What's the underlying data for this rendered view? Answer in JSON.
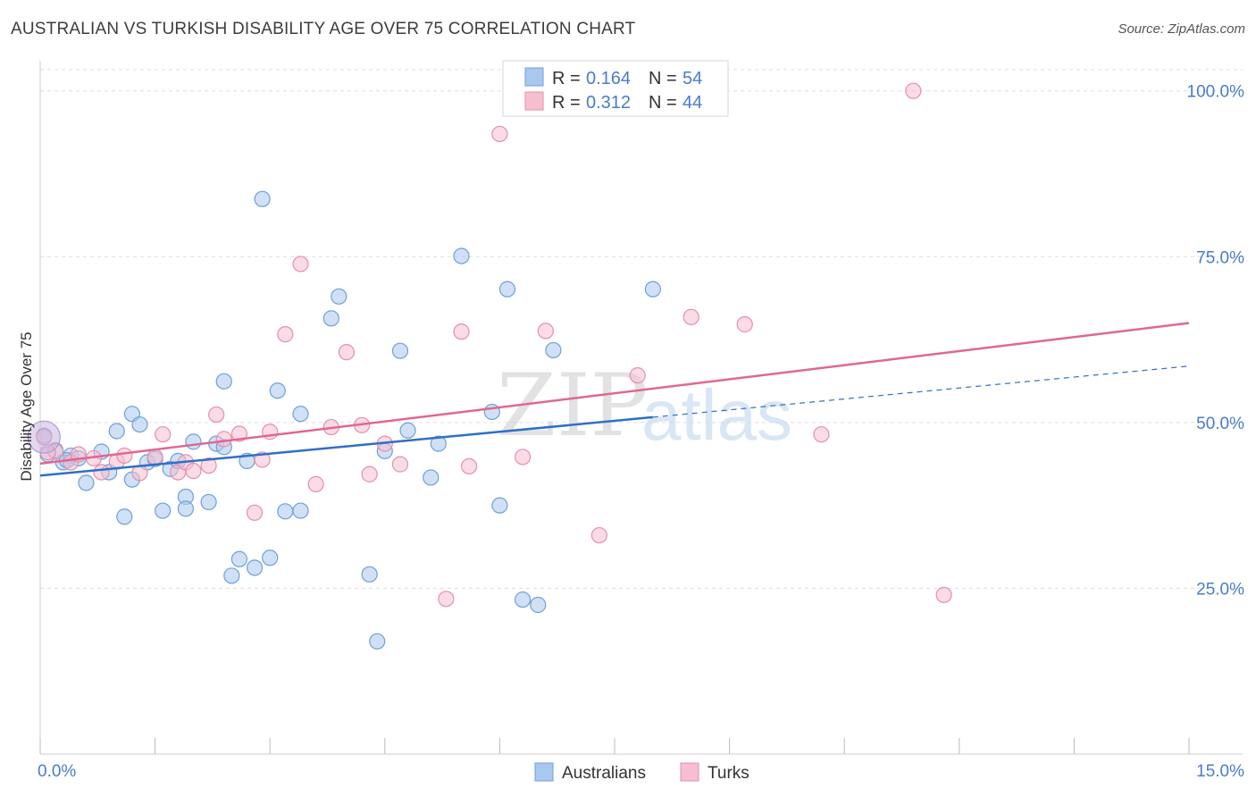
{
  "header": {
    "title": "AUSTRALIAN VS TURKISH DISABILITY AGE OVER 75 CORRELATION CHART",
    "source": "Source: ZipAtlas.com"
  },
  "legend": {
    "rows": [
      {
        "r_label": "R = ",
        "r_value": "0.164",
        "n_label": "N = ",
        "n_value": "54"
      },
      {
        "r_label": "R = ",
        "r_value": "0.312",
        "n_label": "N = ",
        "n_value": "44"
      }
    ],
    "bottom": [
      "Australians",
      "Turks"
    ]
  },
  "watermark": {
    "zip": "ZIP",
    "atlas": "atlas"
  },
  "colors": {
    "australians_fill": "#a9c8ef",
    "australians_stroke": "#6f9fd8",
    "australians_line": "#2f6fc9",
    "turks_fill": "#f6bfd0",
    "turks_stroke": "#e58fab",
    "turks_line": "#e06792",
    "tick_text": "#4a7cc9",
    "grid": "#dddddd"
  },
  "chart_data": {
    "type": "scatter",
    "title": "AUSTRALIAN VS TURKISH DISABILITY AGE OVER 75 CORRELATION CHART",
    "xlabel": "",
    "ylabel": "Disability Age Over 75",
    "xlim": [
      0,
      15
    ],
    "ylim": [
      0,
      104
    ],
    "x_tick_labels": [
      {
        "value": 0,
        "label": "0.0%"
      },
      {
        "value": 15,
        "label": "15.0%"
      }
    ],
    "y_tick_labels": [
      {
        "value": 25,
        "label": "25.0%"
      },
      {
        "value": 50,
        "label": "50.0%"
      },
      {
        "value": 75,
        "label": "75.0%"
      },
      {
        "value": 100,
        "label": "100.0%"
      }
    ],
    "grid": true,
    "legend_position": "top-center",
    "series": [
      {
        "name": "Australians",
        "r": 0.164,
        "n": 54,
        "trend": {
          "x": [
            0,
            8.0
          ],
          "y": [
            42.0,
            50.8
          ]
        },
        "trend_extension": {
          "x": [
            8.0,
            15.0
          ],
          "y": [
            50.8,
            58.5
          ]
        },
        "points": [
          [
            0.1,
            45.2
          ],
          [
            0.2,
            45.8
          ],
          [
            0.3,
            44.0
          ],
          [
            0.4,
            45.0
          ],
          [
            0.5,
            44.6
          ],
          [
            0.6,
            40.9
          ],
          [
            0.8,
            45.6
          ],
          [
            0.9,
            42.5
          ],
          [
            1.0,
            48.7
          ],
          [
            1.1,
            35.8
          ],
          [
            1.2,
            51.3
          ],
          [
            1.2,
            41.4
          ],
          [
            1.3,
            49.7
          ],
          [
            1.4,
            44.0
          ],
          [
            1.5,
            44.5
          ],
          [
            1.6,
            36.7
          ],
          [
            1.7,
            43.0
          ],
          [
            1.8,
            44.2
          ],
          [
            1.9,
            38.8
          ],
          [
            1.9,
            37.0
          ],
          [
            2.0,
            47.1
          ],
          [
            2.2,
            38.0
          ],
          [
            2.3,
            46.8
          ],
          [
            2.4,
            46.3
          ],
          [
            2.4,
            56.2
          ],
          [
            2.5,
            26.9
          ],
          [
            2.6,
            29.4
          ],
          [
            2.7,
            44.2
          ],
          [
            2.8,
            28.1
          ],
          [
            2.9,
            83.7
          ],
          [
            3.0,
            29.6
          ],
          [
            3.1,
            54.8
          ],
          [
            3.2,
            36.6
          ],
          [
            3.4,
            36.7
          ],
          [
            3.4,
            51.3
          ],
          [
            3.8,
            65.7
          ],
          [
            3.9,
            69.0
          ],
          [
            4.3,
            27.1
          ],
          [
            4.4,
            17.0
          ],
          [
            4.5,
            45.7
          ],
          [
            4.7,
            60.8
          ],
          [
            4.8,
            48.8
          ],
          [
            5.1,
            41.7
          ],
          [
            5.2,
            46.8
          ],
          [
            5.5,
            75.1
          ],
          [
            5.9,
            51.6
          ],
          [
            6.0,
            37.5
          ],
          [
            6.1,
            70.1
          ],
          [
            6.3,
            23.3
          ],
          [
            6.5,
            22.5
          ],
          [
            6.7,
            60.9
          ],
          [
            8.0,
            70.1
          ],
          [
            0.05,
            48.0
          ],
          [
            0.35,
            44.3
          ]
        ]
      },
      {
        "name": "Turks",
        "r": 0.312,
        "n": 44,
        "trend": {
          "x": [
            0,
            15.0
          ],
          "y": [
            43.8,
            65.0
          ]
        },
        "points": [
          [
            0.05,
            47.8
          ],
          [
            0.2,
            45.6
          ],
          [
            0.4,
            44.0
          ],
          [
            0.5,
            45.2
          ],
          [
            0.7,
            44.6
          ],
          [
            0.8,
            42.5
          ],
          [
            1.0,
            44.1
          ],
          [
            1.1,
            45.0
          ],
          [
            1.3,
            42.4
          ],
          [
            1.5,
            44.8
          ],
          [
            1.6,
            48.2
          ],
          [
            1.8,
            42.5
          ],
          [
            1.9,
            44.0
          ],
          [
            2.0,
            42.7
          ],
          [
            2.2,
            43.5
          ],
          [
            2.3,
            51.2
          ],
          [
            2.4,
            47.5
          ],
          [
            2.6,
            48.3
          ],
          [
            2.8,
            36.4
          ],
          [
            2.9,
            44.4
          ],
          [
            3.0,
            48.6
          ],
          [
            3.2,
            63.3
          ],
          [
            3.4,
            73.9
          ],
          [
            3.6,
            40.7
          ],
          [
            3.8,
            49.3
          ],
          [
            4.0,
            60.6
          ],
          [
            4.2,
            49.6
          ],
          [
            4.3,
            42.2
          ],
          [
            4.5,
            46.8
          ],
          [
            4.7,
            43.7
          ],
          [
            5.3,
            23.4
          ],
          [
            5.5,
            63.7
          ],
          [
            5.6,
            43.4
          ],
          [
            6.0,
            93.5
          ],
          [
            6.3,
            44.8
          ],
          [
            6.6,
            63.8
          ],
          [
            7.3,
            33.0
          ],
          [
            7.8,
            57.1
          ],
          [
            8.5,
            65.9
          ],
          [
            9.2,
            64.8
          ],
          [
            10.2,
            48.2
          ],
          [
            11.4,
            100.0
          ],
          [
            11.8,
            24.0
          ],
          [
            0.1,
            45.5
          ]
        ]
      }
    ]
  }
}
